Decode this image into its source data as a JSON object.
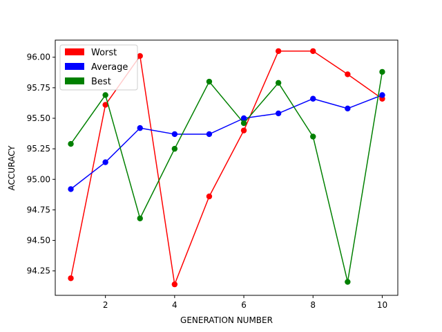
{
  "chart_data": {
    "type": "line",
    "title": "",
    "xlabel": "GENERATION NUMBER",
    "ylabel": "ACCURACY",
    "x": [
      1,
      2,
      3,
      4,
      5,
      6,
      7,
      8,
      9,
      10
    ],
    "xlim": [
      0.55,
      10.45
    ],
    "ylim": [
      94.05,
      96.14
    ],
    "xticks": [
      2,
      4,
      6,
      8,
      10
    ],
    "xtick_labels": [
      "2",
      "4",
      "6",
      "8",
      "10"
    ],
    "yticks": [
      94.25,
      94.5,
      94.75,
      95.0,
      95.25,
      95.5,
      95.75,
      96.0
    ],
    "ytick_labels": [
      "94.25",
      "94.50",
      "94.75",
      "95.00",
      "95.25",
      "95.50",
      "95.75",
      "96.00"
    ],
    "grid": false,
    "legend_position": "top-left",
    "series": [
      {
        "name": "Worst",
        "color": "#ff0000",
        "values": [
          94.19,
          95.61,
          96.01,
          94.14,
          94.86,
          95.4,
          96.05,
          96.05,
          95.86,
          95.66
        ]
      },
      {
        "name": "Average",
        "color": "#0000ff",
        "values": [
          94.92,
          95.14,
          95.42,
          95.37,
          95.37,
          95.5,
          95.54,
          95.66,
          95.58,
          95.69
        ]
      },
      {
        "name": "Best",
        "color": "#008000",
        "values": [
          95.29,
          95.69,
          94.68,
          95.25,
          95.8,
          95.46,
          95.79,
          95.35,
          94.16,
          95.88
        ]
      }
    ]
  }
}
